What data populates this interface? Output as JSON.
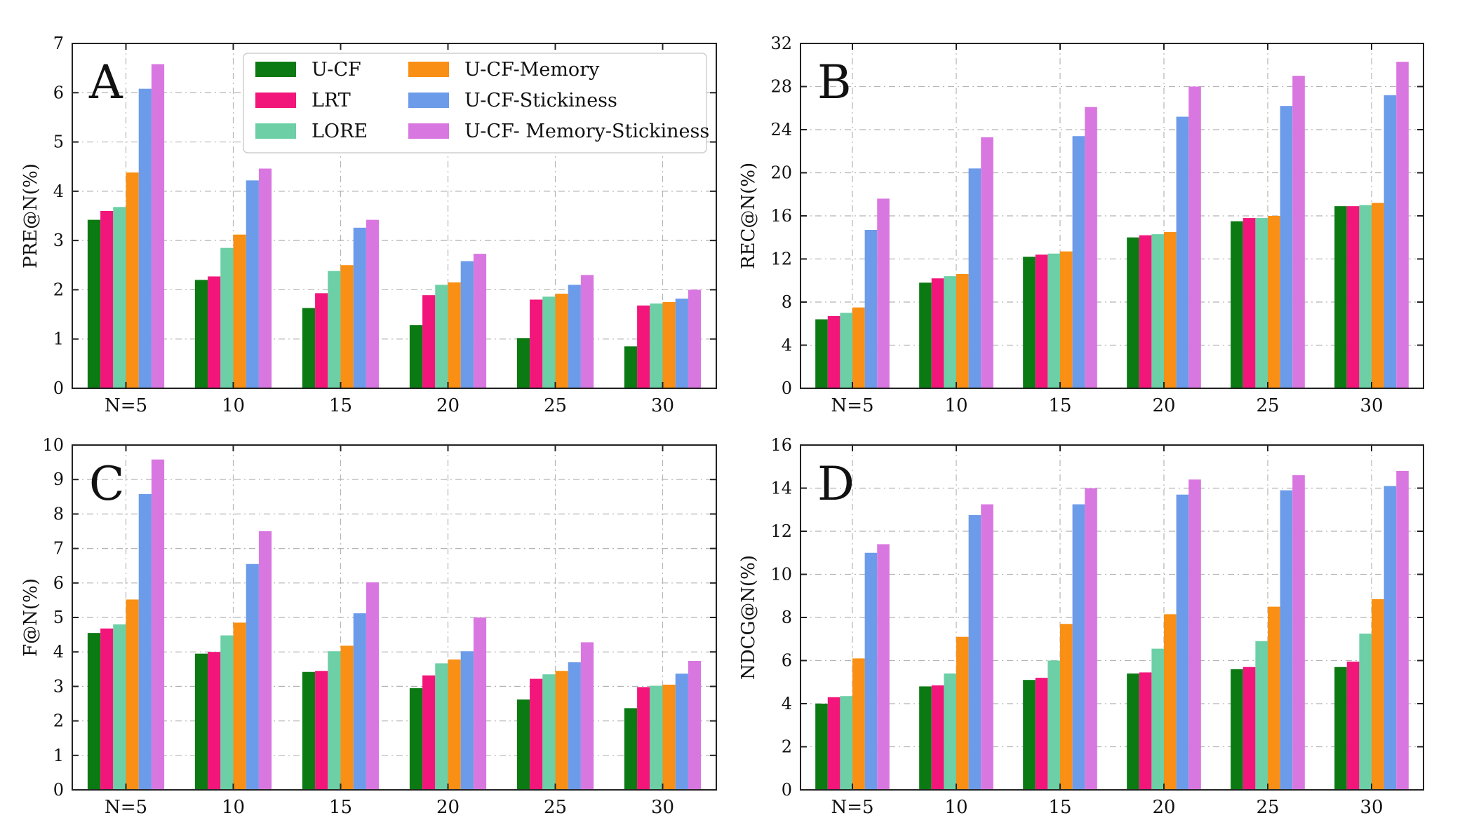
{
  "figure": {
    "colors": {
      "U-CF": "#0b7a13",
      "LRT": "#f2167a",
      "LORE": "#6ccfa5",
      "U-CF-Memory": "#f98f14",
      "U-CF-Stickiness": "#6c9bea",
      "U-CF- Memory-Stickiness": "#d977e0"
    }
  },
  "chart_data": [
    {
      "type": "bar",
      "panel": "A",
      "title": "",
      "xlabel": "",
      "ylabel": "PRE@N(%)",
      "ylim": [
        0,
        7
      ],
      "yticks": [
        0,
        1,
        2,
        3,
        4,
        5,
        6,
        7
      ],
      "grid": true,
      "legend": {
        "position": "top-right",
        "entries": [
          "U-CF",
          "LRT",
          "LORE",
          "U-CF-Memory",
          "U-CF-Stickiness",
          "U-CF- Memory-Stickiness"
        ]
      },
      "categories": [
        "N=5",
        "10",
        "15",
        "20",
        "25",
        "30"
      ],
      "series": [
        {
          "name": "U-CF",
          "values": [
            3.42,
            2.2,
            1.63,
            1.28,
            1.02,
            0.85
          ]
        },
        {
          "name": "LRT",
          "values": [
            3.6,
            2.27,
            1.93,
            1.89,
            1.8,
            1.68
          ]
        },
        {
          "name": "LORE",
          "values": [
            3.68,
            2.85,
            2.38,
            2.1,
            1.86,
            1.72
          ]
        },
        {
          "name": "U-CF-Memory",
          "values": [
            4.38,
            3.12,
            2.5,
            2.15,
            1.92,
            1.75
          ]
        },
        {
          "name": "U-CF-Stickiness",
          "values": [
            6.08,
            4.22,
            3.26,
            2.58,
            2.1,
            1.82
          ]
        },
        {
          "name": "U-CF- Memory-Stickiness",
          "values": [
            6.58,
            4.46,
            3.42,
            2.73,
            2.3,
            2.0
          ]
        }
      ]
    },
    {
      "type": "bar",
      "panel": "B",
      "title": "",
      "xlabel": "",
      "ylabel": "REC@N(%)",
      "ylim": [
        0,
        32
      ],
      "yticks": [
        0,
        4,
        8,
        12,
        16,
        20,
        24,
        28,
        32
      ],
      "grid": true,
      "categories": [
        "N=5",
        "10",
        "15",
        "20",
        "25",
        "30"
      ],
      "series": [
        {
          "name": "U-CF",
          "values": [
            6.4,
            9.8,
            12.2,
            14.0,
            15.5,
            16.9
          ]
        },
        {
          "name": "LRT",
          "values": [
            6.7,
            10.2,
            12.4,
            14.2,
            15.8,
            16.9
          ]
        },
        {
          "name": "LORE",
          "values": [
            7.0,
            10.4,
            12.5,
            14.3,
            15.8,
            17.0
          ]
        },
        {
          "name": "U-CF-Memory",
          "values": [
            7.5,
            10.6,
            12.7,
            14.5,
            16.0,
            17.2
          ]
        },
        {
          "name": "U-CF-Stickiness",
          "values": [
            14.7,
            20.4,
            23.4,
            25.2,
            26.2,
            27.2
          ]
        },
        {
          "name": "U-CF- Memory-Stickiness",
          "values": [
            17.6,
            23.3,
            26.1,
            28.0,
            29.0,
            30.3
          ]
        }
      ]
    },
    {
      "type": "bar",
      "panel": "C",
      "title": "",
      "xlabel": "",
      "ylabel": "F@N(%)",
      "ylim": [
        0,
        10
      ],
      "yticks": [
        0,
        1,
        2,
        3,
        4,
        5,
        6,
        7,
        8,
        9,
        10
      ],
      "grid": true,
      "categories": [
        "N=5",
        "10",
        "15",
        "20",
        "25",
        "30"
      ],
      "series": [
        {
          "name": "U-CF",
          "values": [
            4.55,
            3.95,
            3.42,
            2.95,
            2.62,
            2.37
          ]
        },
        {
          "name": "LRT",
          "values": [
            4.68,
            4.0,
            3.45,
            3.32,
            3.22,
            2.98
          ]
        },
        {
          "name": "LORE",
          "values": [
            4.8,
            4.48,
            4.02,
            3.67,
            3.35,
            3.02
          ]
        },
        {
          "name": "U-CF-Memory",
          "values": [
            5.52,
            4.85,
            4.18,
            3.78,
            3.45,
            3.05
          ]
        },
        {
          "name": "U-CF-Stickiness",
          "values": [
            8.58,
            6.55,
            5.12,
            4.02,
            3.7,
            3.37
          ]
        },
        {
          "name": "U-CF- Memory-Stickiness",
          "values": [
            9.58,
            7.5,
            6.02,
            5.0,
            4.28,
            3.74
          ]
        }
      ]
    },
    {
      "type": "bar",
      "panel": "D",
      "title": "",
      "xlabel": "",
      "ylabel": "NDCG@N(%)",
      "ylim": [
        0,
        16
      ],
      "yticks": [
        0,
        2,
        4,
        6,
        8,
        10,
        12,
        14,
        16
      ],
      "grid": true,
      "categories": [
        "N=5",
        "10",
        "15",
        "20",
        "25",
        "30"
      ],
      "series": [
        {
          "name": "U-CF",
          "values": [
            4.0,
            4.8,
            5.1,
            5.4,
            5.6,
            5.7
          ]
        },
        {
          "name": "LRT",
          "values": [
            4.3,
            4.85,
            5.2,
            5.45,
            5.7,
            5.95
          ]
        },
        {
          "name": "LORE",
          "values": [
            4.35,
            5.4,
            6.0,
            6.55,
            6.9,
            7.25
          ]
        },
        {
          "name": "U-CF-Memory",
          "values": [
            6.1,
            7.1,
            7.7,
            8.15,
            8.5,
            8.85
          ]
        },
        {
          "name": "U-CF-Stickiness",
          "values": [
            11.0,
            12.75,
            13.25,
            13.7,
            13.9,
            14.1
          ]
        },
        {
          "name": "U-CF- Memory-Stickiness",
          "values": [
            11.4,
            13.25,
            14.0,
            14.4,
            14.6,
            14.8
          ]
        }
      ]
    }
  ]
}
